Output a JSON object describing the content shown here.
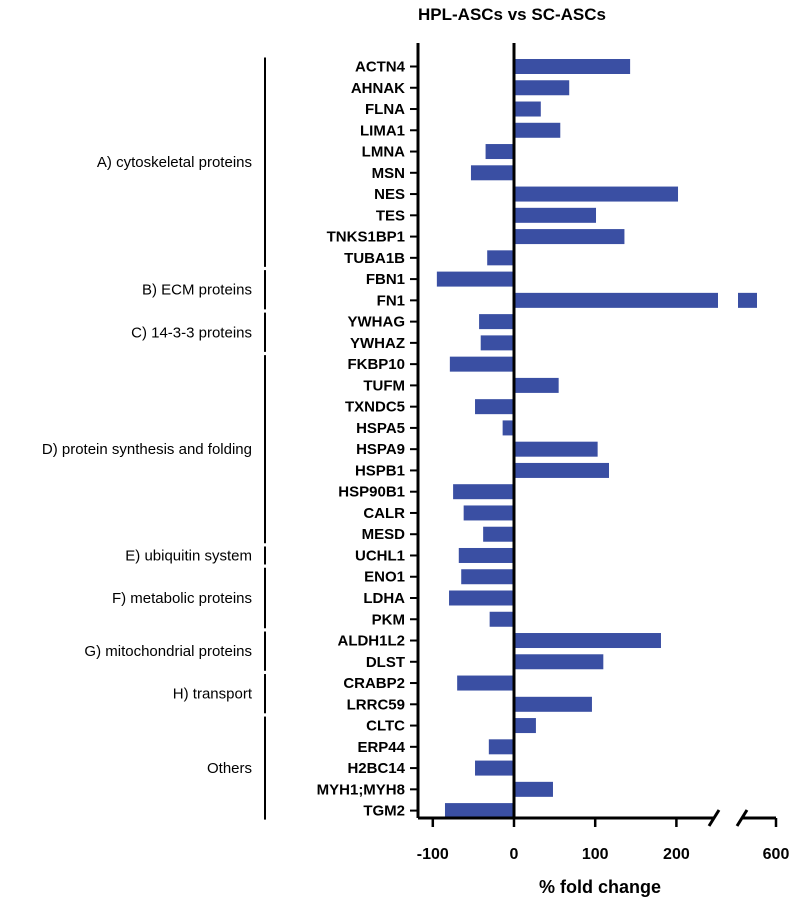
{
  "chart_data": {
    "type": "bar",
    "orientation": "horizontal",
    "title": "HPL-ASCs vs SC-ASCs",
    "xlabel": "% fold change",
    "ylabel": "",
    "bar_color": "#3a4fa3",
    "axis_break": {
      "from": 250,
      "to": 550
    },
    "xlim": [
      -100,
      600
    ],
    "xticks": [
      {
        "value": -100,
        "label": "-100"
      },
      {
        "value": 0,
        "label": "0"
      },
      {
        "value": 100,
        "label": "100"
      },
      {
        "value": 200,
        "label": "200"
      },
      {
        "value": 600,
        "label": "600"
      }
    ],
    "categories": [
      "ACTN4",
      "AHNAK",
      "FLNA",
      "LIMA1",
      "LMNA",
      "MSN",
      "NES",
      "TES",
      "TNKS1BP1",
      "TUBA1B",
      "FBN1",
      "FN1",
      "YWHAG",
      "YWHAZ",
      "FKBP10",
      "TUFM",
      "TXNDC5",
      "HSPA5",
      "HSPA9",
      "HSPB1",
      "HSP90B1",
      "CALR",
      "MESD",
      "UCHL1",
      "ENO1",
      "LDHA",
      "PKM",
      "ALDH1L2",
      "DLST",
      "CRABP2",
      "LRRC59",
      "CLTC",
      "ERP44",
      "H2BC14",
      "MYH1;MYH8",
      "TGM2"
    ],
    "values": [
      143,
      68,
      33,
      57,
      -35,
      -53,
      202,
      101,
      136,
      -33,
      -95,
      575,
      -43,
      -41,
      -79,
      55,
      -48,
      -14,
      103,
      117,
      -75,
      -62,
      -38,
      -68,
      -65,
      -80,
      -30,
      181,
      110,
      -70,
      96,
      27,
      -31,
      -48,
      48,
      -85
    ],
    "groups": [
      {
        "label": "A) cytoskeletal proteins",
        "start": 0,
        "end": 9
      },
      {
        "label": "B) ECM proteins",
        "start": 10,
        "end": 11
      },
      {
        "label": "C) 14-3-3 proteins",
        "start": 12,
        "end": 13
      },
      {
        "label": "D) protein synthesis and folding",
        "start": 14,
        "end": 22
      },
      {
        "label": "E) ubiquitin system",
        "start": 23,
        "end": 23
      },
      {
        "label": "F) metabolic proteins",
        "start": 24,
        "end": 26
      },
      {
        "label": "G) mitochondrial proteins",
        "start": 27,
        "end": 28
      },
      {
        "label": "H) transport",
        "start": 29,
        "end": 30
      },
      {
        "label": "Others",
        "start": 31,
        "end": 35
      }
    ]
  }
}
